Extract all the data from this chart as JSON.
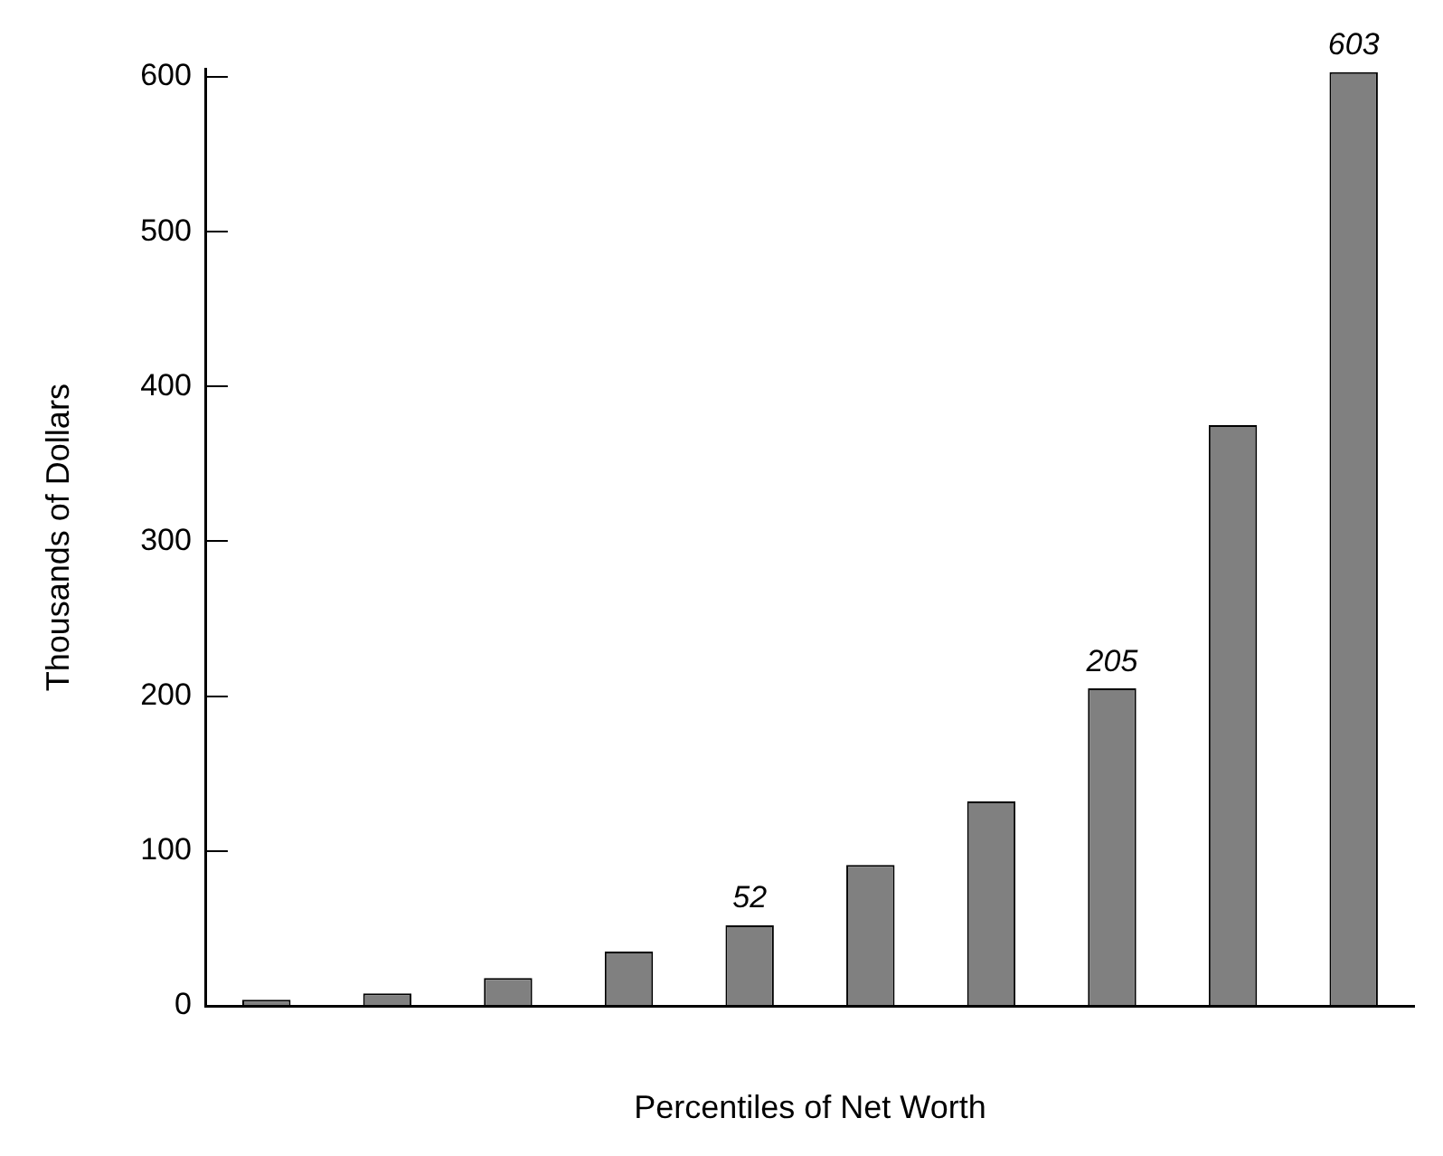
{
  "chart_data": {
    "type": "bar",
    "xlabel": "Percentiles of Net Worth",
    "ylabel": "Thousands of Dollars",
    "categories": [
      null,
      null,
      null,
      null,
      null,
      null,
      null,
      null,
      null,
      null
    ],
    "values": [
      4,
      8,
      18,
      35,
      52,
      91,
      132,
      205,
      375,
      603
    ],
    "value_labels": [
      null,
      null,
      null,
      null,
      "52",
      null,
      null,
      "205",
      null,
      "603"
    ],
    "color": "#808080",
    "ylim": [
      0,
      605
    ],
    "yticks": [
      0,
      100,
      200,
      300,
      400,
      500,
      600
    ],
    "grid": false,
    "legend": false
  }
}
